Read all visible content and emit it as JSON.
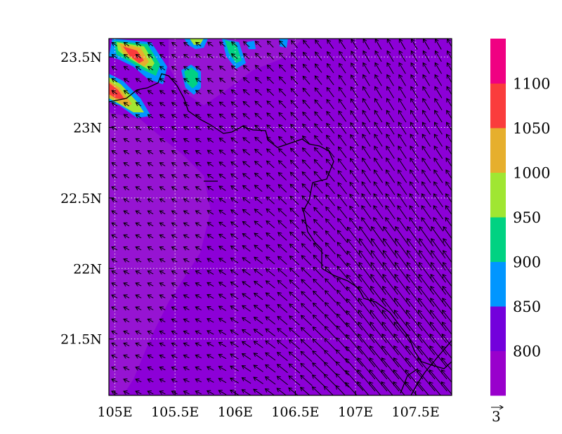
{
  "map": {
    "x_axis": {
      "ticks": [
        {
          "value": 105.0,
          "label": "105E"
        },
        {
          "value": 105.5,
          "label": "105.5E"
        },
        {
          "value": 106.0,
          "label": "106E"
        },
        {
          "value": 106.5,
          "label": "106.5E"
        },
        {
          "value": 107.0,
          "label": "107E"
        },
        {
          "value": 107.5,
          "label": "107.5E"
        }
      ],
      "range": [
        104.95,
        107.8
      ]
    },
    "y_axis": {
      "ticks": [
        {
          "value": 21.5,
          "label": "21.5N"
        },
        {
          "value": 22.0,
          "label": "22N"
        },
        {
          "value": 22.5,
          "label": "22.5N"
        },
        {
          "value": 23.0,
          "label": "23N"
        },
        {
          "value": 23.5,
          "label": "23.5N"
        }
      ],
      "range": [
        21.1,
        23.63
      ]
    },
    "grid": "dotted"
  },
  "colorbar": {
    "levels": [
      {
        "label": "800",
        "color": "#7300dc"
      },
      {
        "label": "850",
        "color": "#0096ff"
      },
      {
        "label": "900",
        "color": "#00d282"
      },
      {
        "label": "950",
        "color": "#a0e632"
      },
      {
        "label": "1000",
        "color": "#e6af2d"
      },
      {
        "label": "1050",
        "color": "#fa3c3c"
      },
      {
        "label": "1100",
        "color": "#f00082"
      }
    ],
    "bins": [
      "#9900cc",
      "#7300dc",
      "#0096ff",
      "#00d282",
      "#a0e632",
      "#e6af2d",
      "#fa3c3c",
      "#f00082"
    ]
  },
  "vector_reference": {
    "label": "3"
  },
  "field_colors": {
    "background": "#8c00d7",
    "light": "#9614d2",
    "border": "#000000"
  }
}
